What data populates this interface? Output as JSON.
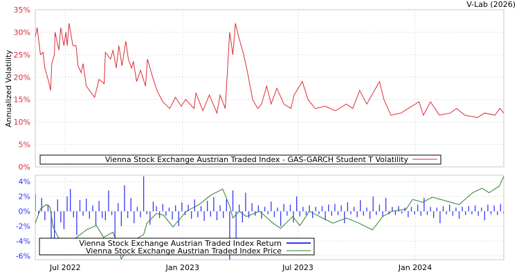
{
  "header": {
    "source": "V-Lab (2026)"
  },
  "colors": {
    "volatility": "#dd2a35",
    "return": "#3333ff",
    "price": "#2a7d2a",
    "grid": "#c8c8c8",
    "frame": "#c8c8c8"
  },
  "chart_data": [
    {
      "type": "line",
      "title": "",
      "ylabel": "Annualized Volatility",
      "x_unit": "days since 2022-05-15",
      "xlim": [
        0,
        735
      ],
      "ylim": [
        0,
        35
      ],
      "yticks": [
        0,
        5,
        10,
        15,
        20,
        25,
        30,
        35
      ],
      "ytick_labels": [
        "0%",
        "5%",
        "10%",
        "15%",
        "20%",
        "25%",
        "30%",
        "35%"
      ],
      "grid": true,
      "legend_placement": "bottom",
      "series": [
        {
          "name": "Vienna Stock Exchange Austrian Traded Index - GAS-GARCH Student T Volatility",
          "points": [
            [
              0,
              29
            ],
            [
              3,
              31
            ],
            [
              8,
              25
            ],
            [
              12,
              25.5
            ],
            [
              15,
              22
            ],
            [
              21,
              19
            ],
            [
              24,
              17
            ],
            [
              26,
              23
            ],
            [
              30,
              25
            ],
            [
              31,
              30
            ],
            [
              37,
              26
            ],
            [
              40,
              31
            ],
            [
              45,
              27
            ],
            [
              48,
              30
            ],
            [
              50,
              27
            ],
            [
              53,
              32
            ],
            [
              59,
              27
            ],
            [
              64,
              27
            ],
            [
              67,
              22.5
            ],
            [
              72,
              21
            ],
            [
              75,
              23
            ],
            [
              80,
              18
            ],
            [
              93,
              15.5
            ],
            [
              100,
              19.5
            ],
            [
              108,
              18.5
            ],
            [
              110,
              25.5
            ],
            [
              118,
              24
            ],
            [
              122,
              26
            ],
            [
              127,
              22
            ],
            [
              131,
              27
            ],
            [
              136,
              22.5
            ],
            [
              142,
              28
            ],
            [
              146,
              24
            ],
            [
              151,
              22
            ],
            [
              154,
              23.5
            ],
            [
              159,
              19
            ],
            [
              165,
              21.5
            ],
            [
              173,
              18
            ],
            [
              176,
              24
            ],
            [
              184,
              20
            ],
            [
              191,
              17
            ],
            [
              200,
              14.5
            ],
            [
              211,
              13
            ],
            [
              220,
              15.5
            ],
            [
              229,
              13.5
            ],
            [
              236,
              15
            ],
            [
              249,
              13
            ],
            [
              252,
              16.5
            ],
            [
              263,
              12.5
            ],
            [
              273,
              16
            ],
            [
              285,
              12
            ],
            [
              290,
              16
            ],
            [
              298,
              13
            ],
            [
              305,
              30
            ],
            [
              310,
              25
            ],
            [
              314,
              32
            ],
            [
              319,
              29
            ],
            [
              327,
              25
            ],
            [
              333,
              21
            ],
            [
              341,
              15
            ],
            [
              349,
              13
            ],
            [
              355,
              14
            ],
            [
              363,
              18
            ],
            [
              370,
              14
            ],
            [
              379,
              17.5
            ],
            [
              390,
              14
            ],
            [
              401,
              13
            ],
            [
              406,
              16
            ],
            [
              419,
              19
            ],
            [
              428,
              15
            ],
            [
              439,
              13
            ],
            [
              455,
              13.5
            ],
            [
              471,
              12.5
            ],
            [
              488,
              14
            ],
            [
              498,
              13
            ],
            [
              509,
              17
            ],
            [
              520,
              14
            ],
            [
              540,
              19
            ],
            [
              547,
              15
            ],
            [
              558,
              11.5
            ],
            [
              574,
              12
            ],
            [
              585,
              13
            ],
            [
              602,
              14.5
            ],
            [
              609,
              11.5
            ],
            [
              620,
              14.5
            ],
            [
              634,
              11.5
            ],
            [
              651,
              12
            ],
            [
              661,
              13
            ],
            [
              674,
              11.5
            ],
            [
              694,
              11
            ],
            [
              705,
              12
            ],
            [
              721,
              11.5
            ],
            [
              729,
              13
            ],
            [
              735,
              12
            ]
          ]
        }
      ]
    },
    {
      "type": "bar+line",
      "x_unit": "days since 2022-05-15",
      "xlim": [
        0,
        735
      ],
      "ylim": [
        -6.5,
        4.85
      ],
      "yticks": [
        -6,
        -4,
        -2,
        0,
        2,
        4
      ],
      "ytick_labels": [
        "-6%",
        "-4%",
        "-2%",
        "0%",
        "2%",
        "4%"
      ],
      "xticks": [
        47,
        231,
        412,
        596
      ],
      "xtick_labels": [
        "Jul 2022",
        "Jan 2023",
        "Jul 2023",
        "Jan 2024"
      ],
      "grid": true,
      "legend_placement": "bottom-left",
      "series": [
        {
          "name": "Vienna Stock Exchange Austrian Traded Index Return",
          "kind": "bar",
          "day_step": 5,
          "values": [
            2.3,
            -0.3,
            1.8,
            -1.2,
            0.9,
            -4.5,
            -3.8,
            1.6,
            -1.5,
            -2.4,
            2.0,
            3.0,
            -0.8,
            -3.2,
            1.5,
            -0.6,
            1.7,
            -1.0,
            0.8,
            -1.9,
            1.4,
            -0.9,
            -1.2,
            2.8,
            -0.5,
            -4.2,
            1.1,
            -2.0,
            3.5,
            -0.9,
            1.8,
            -1.6,
            0.6,
            -0.8,
            4.7,
            -0.4,
            -1.8,
            1.3,
            0.7,
            -0.9,
            1.0,
            -0.6,
            0.5,
            -1.1,
            0.8,
            -2.0,
            1.2,
            -0.5,
            0.9,
            -1.0,
            1.6,
            -0.8,
            0.7,
            -1.3,
            1.4,
            -0.7,
            1.9,
            -1.2,
            0.8,
            -0.9,
            1.6,
            -6.5,
            2.8,
            -4.5,
            0.9,
            -1.5,
            2.5,
            -0.9,
            1.1,
            -0.6,
            0.8,
            -1.0,
            0.6,
            -0.4,
            1.3,
            -0.8,
            0.5,
            -2.0,
            1.0,
            -0.6,
            0.9,
            -1.5,
            2.0,
            -0.7,
            0.6,
            -0.5,
            0.8,
            -0.9,
            0.6,
            -0.4,
            0.7,
            -1.2,
            0.9,
            -0.6,
            1.0,
            -0.5,
            0.8,
            -1.6,
            1.2,
            -0.4,
            0.6,
            -0.8,
            1.5,
            -0.6,
            0.5,
            -1.0,
            2.0,
            -0.5,
            0.9,
            -0.7,
            1.8,
            -0.4,
            0.6,
            -0.5,
            0.7,
            -0.3,
            0.5,
            -0.8,
            0.6,
            -0.4,
            0.9,
            -0.6,
            1.8,
            -0.5,
            0.6,
            -0.9,
            0.5,
            -1.6,
            0.7,
            -0.4,
            0.9,
            -0.6,
            0.5,
            -1.0,
            0.6,
            -0.5,
            0.7,
            -0.4,
            0.8,
            -0.6,
            0.5,
            -1.2,
            0.9,
            -0.4,
            0.8,
            -0.5,
            1.0,
            -0.3
          ]
        },
        {
          "name": "Vienna Stock Exchange Austrian Traded Index Price",
          "kind": "line",
          "scale": "secondary (unlabeled, shown on return axis)",
          "points": [
            [
              0,
              -1.6
            ],
            [
              8,
              0.3
            ],
            [
              17,
              0.9
            ],
            [
              23,
              0.6
            ],
            [
              28,
              -2.1
            ],
            [
              36,
              -3.5
            ],
            [
              43,
              -4.4
            ],
            [
              65,
              -3.5
            ],
            [
              80,
              -2.5
            ],
            [
              96,
              -1.9
            ],
            [
              107,
              -3.5
            ],
            [
              122,
              -2.8
            ],
            [
              135,
              -6.4
            ],
            [
              153,
              -4.0
            ],
            [
              170,
              -3.1
            ],
            [
              175,
              -1.6
            ],
            [
              190,
              -0.3
            ],
            [
              201,
              -0.5
            ],
            [
              216,
              -2.1
            ],
            [
              237,
              0
            ],
            [
              257,
              0.9
            ],
            [
              274,
              2.1
            ],
            [
              294,
              3.0
            ],
            [
              305,
              0.7
            ],
            [
              310,
              -0.9
            ],
            [
              320,
              0
            ],
            [
              331,
              -0.7
            ],
            [
              352,
              0
            ],
            [
              373,
              -1.6
            ],
            [
              385,
              -2.3
            ],
            [
              404,
              -0.7
            ],
            [
              415,
              -1.9
            ],
            [
              430,
              0
            ],
            [
              446,
              -0.7
            ],
            [
              467,
              -1.6
            ],
            [
              488,
              -0.9
            ],
            [
              508,
              -1.6
            ],
            [
              529,
              -2.5
            ],
            [
              545,
              -0.7
            ],
            [
              560,
              0
            ],
            [
              582,
              0.3
            ],
            [
              592,
              1.6
            ],
            [
              608,
              1.2
            ],
            [
              623,
              1.9
            ],
            [
              644,
              1.4
            ],
            [
              665,
              0.9
            ],
            [
              686,
              2.5
            ],
            [
              701,
              3.1
            ],
            [
              712,
              2.5
            ],
            [
              728,
              3.4
            ],
            [
              735,
              4.7
            ]
          ]
        }
      ]
    }
  ]
}
